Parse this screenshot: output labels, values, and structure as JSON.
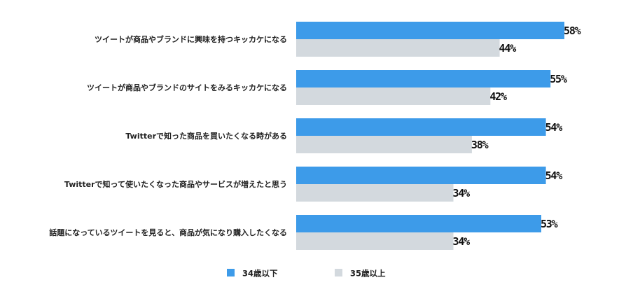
{
  "chart_data": {
    "type": "bar",
    "orientation": "horizontal",
    "categories": [
      "ツイートが商品やブランドに興味を持つキッカケになる",
      "ツイートが商品やブランドのサイトをみるキッカケになる",
      "Twitterで知った商品を買いたくなる時がある",
      "Twitterで知って使いたくなった商品やサービスが増えたと思う",
      "話題になっているツイートを見ると、商品が気になり購入したくなる"
    ],
    "series": [
      {
        "name": "34歳以下",
        "color": "#3d9be9",
        "values": [
          58,
          55,
          54,
          54,
          53
        ],
        "labels": [
          "58%",
          "55%",
          "54%",
          "54%",
          "53%"
        ]
      },
      {
        "name": "35歳以上",
        "color": "#d3d9de",
        "values": [
          44,
          42,
          38,
          34,
          34
        ],
        "labels": [
          "44%",
          "42%",
          "38%",
          "34%",
          "34%"
        ]
      }
    ],
    "unit": "%",
    "xlim": [
      0,
      58
    ],
    "grid": false,
    "legend_position": "bottom-center"
  }
}
